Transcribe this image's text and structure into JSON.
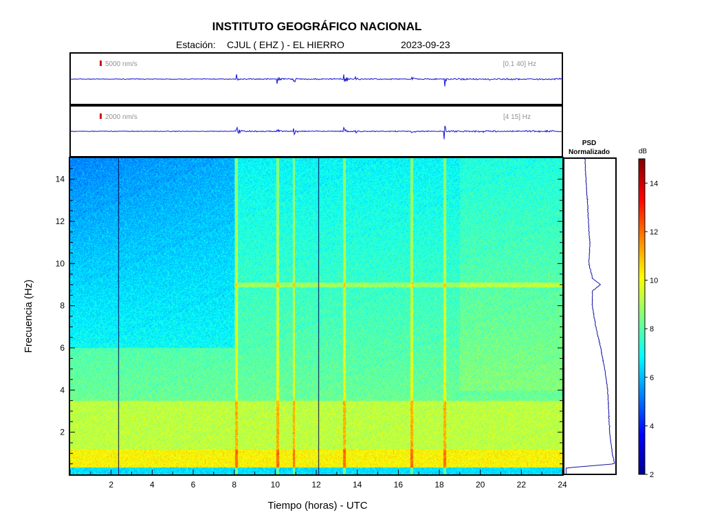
{
  "header": {
    "title": "INSTITUTO GEOGRÁFICO NACIONAL",
    "station_label": "Estación:",
    "station": "CJUL ( EHZ ) - EL HIERRO",
    "date": "2023-09-23"
  },
  "colors": {
    "trace": "#1010d0",
    "scale_bar": "#d01010",
    "filter_text": "#909090"
  },
  "chart_data": [
    {
      "type": "line",
      "title": "",
      "scale_label": "5000 nm/s",
      "filter_label": "[0.1 40] Hz",
      "x_range": [
        0,
        24
      ],
      "events": [
        {
          "t": 8.1,
          "amp": 0.7
        },
        {
          "t": 10.1,
          "amp": 0.35
        },
        {
          "t": 10.9,
          "amp": 0.3
        },
        {
          "t": 13.35,
          "amp": 0.65
        },
        {
          "t": 13.9,
          "amp": 0.25
        },
        {
          "t": 16.65,
          "amp": 0.25
        },
        {
          "t": 18.25,
          "amp": 0.65
        }
      ]
    },
    {
      "type": "line",
      "title": "",
      "scale_label": "2000 nm/s",
      "filter_label": "[4 15] Hz",
      "x_range": [
        0,
        24
      ],
      "events": [
        {
          "t": 8.1,
          "amp": 0.75
        },
        {
          "t": 10.1,
          "amp": 0.45
        },
        {
          "t": 10.9,
          "amp": 0.35
        },
        {
          "t": 13.35,
          "amp": 0.75
        },
        {
          "t": 13.9,
          "amp": 0.4
        },
        {
          "t": 16.65,
          "amp": 0.25
        },
        {
          "t": 18.25,
          "amp": 0.8
        }
      ]
    },
    {
      "type": "heatmap",
      "xlabel": "Tiempo (horas) - UTC",
      "ylabel": "Frecuencia  (Hz)",
      "x_range": [
        0,
        24
      ],
      "y_range": [
        0,
        15
      ],
      "x_ticks": [
        2,
        4,
        6,
        8,
        10,
        12,
        14,
        16,
        18,
        20,
        22,
        24
      ],
      "y_ticks": [
        2,
        4,
        6,
        8,
        10,
        12,
        14
      ],
      "gaps_hours": [
        2.35,
        12.1
      ],
      "event_lines_hours": [
        8.1,
        10.1,
        10.9,
        13.35,
        16.65,
        18.25
      ],
      "harmonic_band_hz": 9.0
    },
    {
      "type": "line",
      "title": "PSD\nNormalizado",
      "title_line1": "PSD",
      "title_line2": "Normalizado",
      "freq_hz": [
        0.3,
        0.5,
        1,
        2,
        3,
        4,
        5,
        6,
        7,
        8,
        8.7,
        9.0,
        9.3,
        10,
        11,
        12,
        13,
        14,
        15
      ],
      "psd_norm": [
        0.0,
        1.0,
        0.95,
        0.9,
        0.88,
        0.86,
        0.8,
        0.72,
        0.62,
        0.55,
        0.55,
        0.72,
        0.55,
        0.48,
        0.5,
        0.47,
        0.45,
        0.42,
        0.4
      ]
    }
  ],
  "colorbar": {
    "label": "dB",
    "range": [
      2,
      15
    ],
    "ticks": [
      2,
      4,
      6,
      8,
      10,
      12,
      14
    ]
  }
}
